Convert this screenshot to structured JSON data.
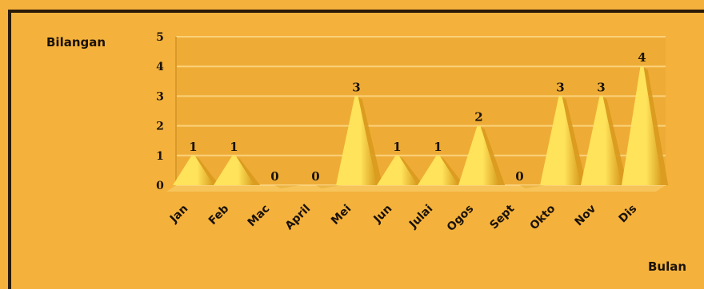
{
  "chart_data": {
    "type": "area",
    "ylabel": "Bilangan",
    "xlabel": "Bulan",
    "categories": [
      "Jan",
      "Feb",
      "Mac",
      "April",
      "Mei",
      "Jun",
      "Julai",
      "Ogos",
      "Sept",
      "Okto",
      "Nov",
      "Dis"
    ],
    "values": [
      1,
      1,
      0,
      0,
      3,
      1,
      1,
      2,
      0,
      3,
      3,
      4
    ],
    "y_ticks": [
      0,
      1,
      2,
      3,
      4,
      5
    ],
    "ylim": [
      0,
      5
    ],
    "grid": true,
    "colors": {
      "background": "#F4B13C",
      "plot_back": "#E9A934",
      "mark_light": "#FFE35A",
      "mark_dark": "#D89A1E",
      "grid": "#FBD27A",
      "text": "#1a1208"
    }
  }
}
